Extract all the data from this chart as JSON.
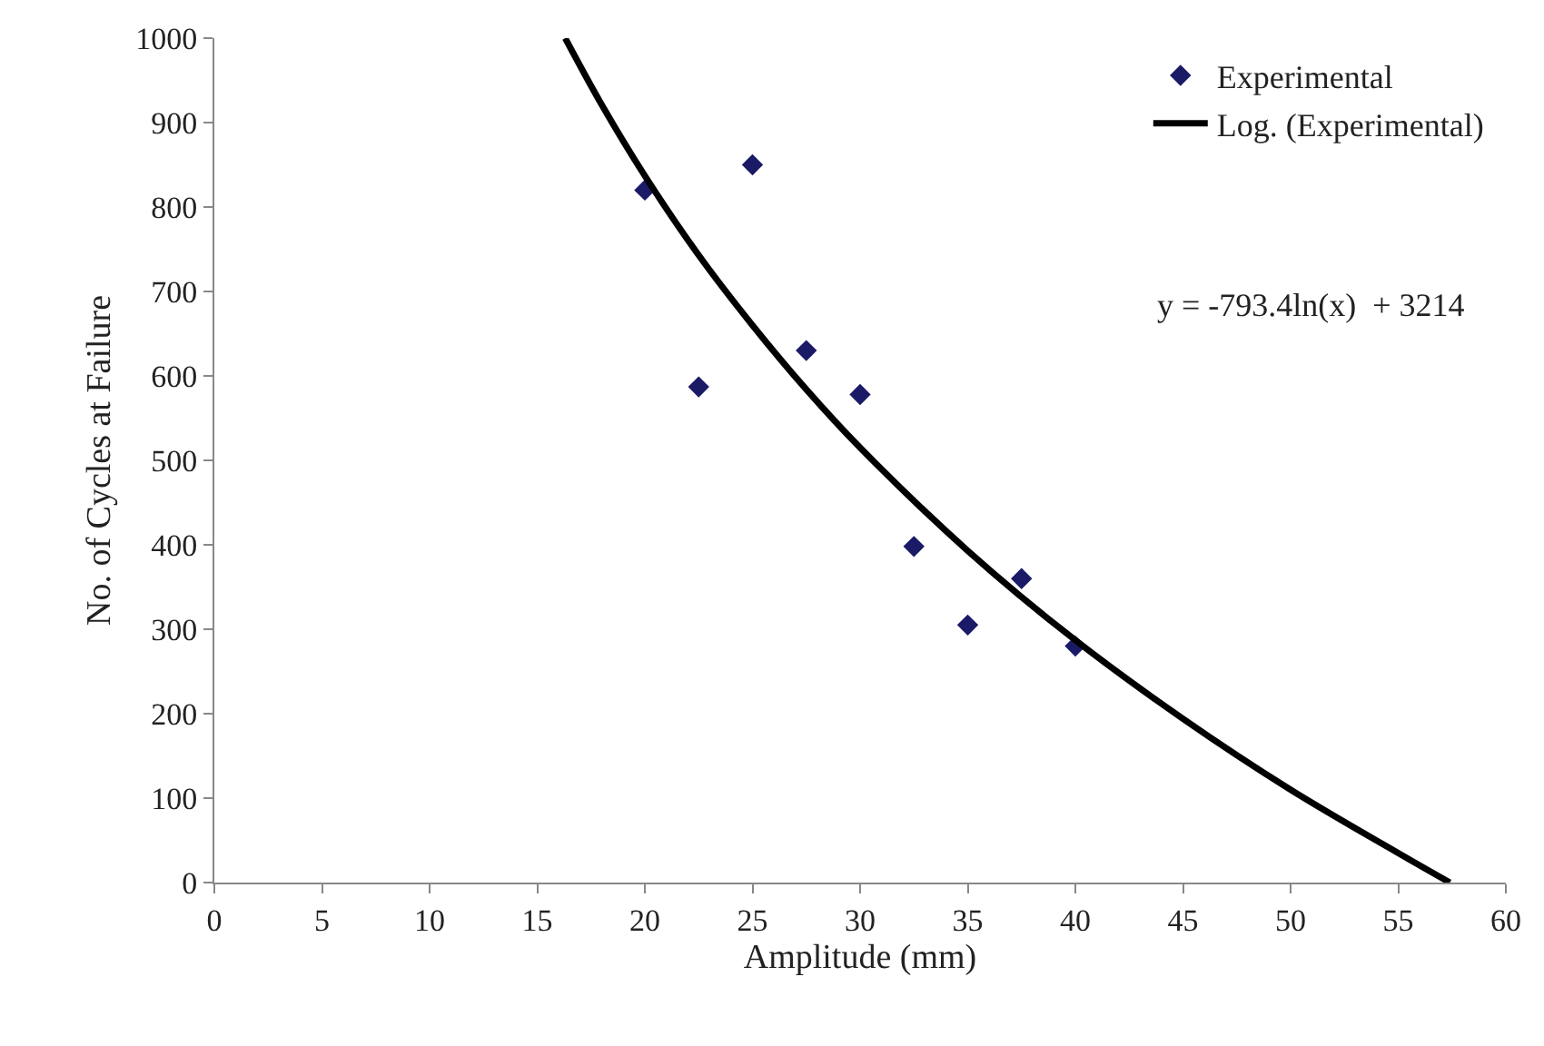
{
  "chart_data": {
    "type": "scatter",
    "xlabel": "Amplitude (mm)",
    "ylabel": "No. of Cycles at Failure",
    "series": [
      {
        "name": "Experimental",
        "color": "#1a1a66",
        "marker": "diamond",
        "x": [
          20,
          22.5,
          25,
          27.5,
          30,
          32.5,
          35,
          37.5,
          40
        ],
        "values": [
          820,
          587,
          850,
          630,
          578,
          398,
          305,
          360,
          280
        ]
      },
      {
        "name": "Log. (Experimental)",
        "type": "line",
        "color": "#000000",
        "marker": "none",
        "line_style": "solid",
        "x": [
          16.3,
          18,
          20,
          22.5,
          25,
          27.5,
          30,
          35,
          40,
          45,
          50,
          55,
          57.4
        ],
        "values": [
          1000,
          921,
          837,
          743,
          660,
          584,
          515,
          393,
          287,
          194,
          110,
          35,
          0
        ]
      }
    ],
    "annotations": [
      "y = -793.4ln(x)  + 3214"
    ],
    "xlim": [
      0,
      60
    ],
    "xticks": [
      0,
      5,
      10,
      15,
      20,
      25,
      30,
      35,
      40,
      45,
      50,
      55,
      60
    ],
    "ylim": [
      0,
      1000
    ],
    "yticks": [
      0,
      100,
      200,
      300,
      400,
      500,
      600,
      700,
      800,
      900,
      1000
    ],
    "legend": "top right"
  }
}
